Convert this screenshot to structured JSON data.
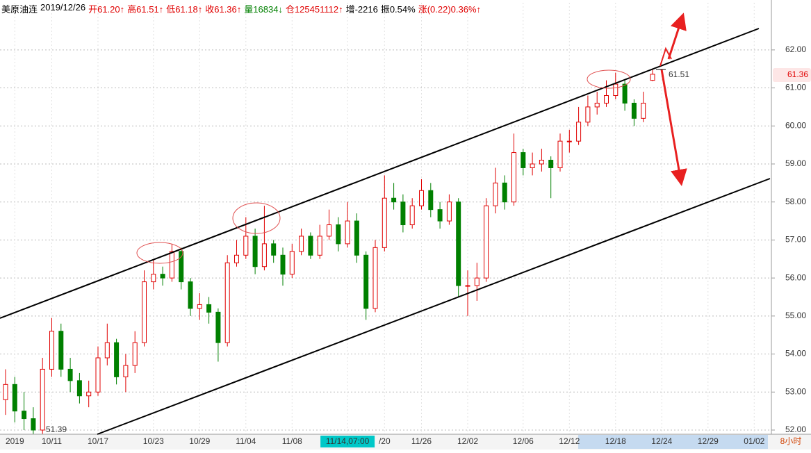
{
  "chart_data": {
    "type": "candlestick",
    "header": [
      {
        "text": "美原油连",
        "color": "#000000"
      },
      {
        "text": "2019/12/26",
        "color": "#000000"
      },
      {
        "text": "开61.20↑",
        "color": "#e00000"
      },
      {
        "text": "高61.51↑",
        "color": "#e00000"
      },
      {
        "text": "低61.18↑",
        "color": "#e00000"
      },
      {
        "text": "收61.36↑",
        "color": "#e00000"
      },
      {
        "text": "量16834↓",
        "color": "#008000"
      },
      {
        "text": "仓125451112↑",
        "color": "#e00000"
      },
      {
        "text": "增-2216",
        "color": "#000000"
      },
      {
        "text": "振0.54%",
        "color": "#000000"
      },
      {
        "text": "涨(0.22)0.36%↑",
        "color": "#e00000"
      }
    ],
    "period": "8小时",
    "categories": [
      null,
      "2019",
      null,
      null,
      null,
      "10/11",
      null,
      null,
      null,
      null,
      "10/17",
      null,
      null,
      null,
      null,
      null,
      "10/23",
      null,
      null,
      null,
      null,
      "10/29",
      null,
      null,
      null,
      null,
      "11/04",
      null,
      null,
      null,
      null,
      "11/08",
      null,
      null,
      null,
      null,
      null,
      "11/14,07:00",
      null,
      null,
      null,
      "/20",
      null,
      null,
      null,
      "11/26",
      null,
      null,
      null,
      null,
      "12/02",
      null,
      null,
      null,
      null,
      null,
      "12/06",
      null,
      null,
      null,
      null,
      "12/12",
      null,
      null,
      null,
      null,
      "12/18",
      null,
      null,
      null,
      null,
      "12/24",
      null,
      null,
      null,
      null,
      "12/29",
      null,
      null,
      null,
      null,
      "01/02",
      null
    ],
    "highlighted_category": "11/14,07:00",
    "ohlc": [
      [
        52.8,
        53.6,
        52.4,
        53.2
      ],
      [
        53.2,
        53.4,
        52.2,
        52.5
      ],
      [
        52.5,
        53.0,
        52.0,
        52.3
      ],
      [
        52.3,
        52.6,
        51.39,
        52.0
      ],
      [
        52.0,
        53.9,
        51.9,
        53.6
      ],
      [
        53.6,
        54.95,
        53.4,
        54.6
      ],
      [
        54.6,
        54.8,
        53.4,
        53.6
      ],
      [
        53.6,
        53.9,
        53.0,
        53.3
      ],
      [
        53.3,
        53.5,
        52.7,
        52.9
      ],
      [
        52.9,
        53.3,
        52.6,
        53.0
      ],
      [
        53.0,
        54.2,
        52.9,
        53.9
      ],
      [
        53.9,
        54.8,
        53.7,
        54.3
      ],
      [
        54.3,
        54.4,
        53.2,
        53.4
      ],
      [
        53.4,
        54.0,
        53.0,
        53.7
      ],
      [
        53.7,
        54.6,
        53.5,
        54.3
      ],
      [
        54.3,
        56.2,
        54.2,
        55.9
      ],
      [
        55.9,
        56.5,
        55.7,
        56.1
      ],
      [
        56.1,
        56.3,
        55.8,
        56.0
      ],
      [
        56.0,
        56.9,
        55.9,
        56.7
      ],
      [
        56.7,
        56.8,
        55.7,
        55.9
      ],
      [
        55.9,
        56.0,
        55.0,
        55.2
      ],
      [
        55.2,
        55.6,
        54.9,
        55.3
      ],
      [
        55.3,
        55.5,
        54.8,
        55.1
      ],
      [
        55.1,
        55.2,
        53.8,
        54.3
      ],
      [
        54.3,
        56.6,
        54.2,
        56.4
      ],
      [
        56.4,
        57.0,
        56.3,
        56.6
      ],
      [
        56.6,
        57.6,
        56.5,
        57.1
      ],
      [
        57.1,
        57.3,
        56.1,
        56.3
      ],
      [
        56.3,
        57.9,
        56.2,
        56.9
      ],
      [
        56.9,
        57.0,
        56.4,
        56.6
      ],
      [
        56.6,
        56.8,
        55.8,
        56.1
      ],
      [
        56.1,
        56.9,
        56.0,
        56.7
      ],
      [
        56.7,
        57.3,
        56.6,
        57.1
      ],
      [
        57.1,
        57.2,
        56.5,
        56.6
      ],
      [
        56.6,
        57.4,
        56.5,
        57.1
      ],
      [
        57.1,
        57.8,
        57.0,
        57.4
      ],
      [
        57.4,
        57.6,
        56.7,
        56.9
      ],
      [
        56.9,
        58.0,
        56.8,
        57.5
      ],
      [
        57.5,
        57.7,
        56.4,
        56.6
      ],
      [
        56.6,
        56.7,
        54.9,
        55.2
      ],
      [
        55.2,
        57.0,
        55.1,
        56.8
      ],
      [
        56.8,
        58.7,
        56.7,
        58.1
      ],
      [
        58.1,
        58.5,
        57.8,
        58.0
      ],
      [
        58.0,
        58.2,
        57.2,
        57.4
      ],
      [
        57.4,
        58.1,
        57.3,
        57.9
      ],
      [
        57.9,
        58.6,
        57.8,
        58.3
      ],
      [
        58.3,
        58.5,
        57.6,
        57.8
      ],
      [
        57.8,
        58.0,
        57.3,
        57.5
      ],
      [
        57.5,
        58.2,
        57.4,
        58.0
      ],
      [
        58.0,
        58.1,
        55.5,
        55.8
      ],
      [
        55.8,
        56.2,
        55.0,
        55.8
      ],
      [
        55.8,
        56.4,
        55.4,
        56.0
      ],
      [
        56.0,
        58.1,
        55.9,
        57.9
      ],
      [
        57.9,
        58.9,
        57.7,
        58.5
      ],
      [
        58.5,
        58.7,
        57.8,
        58.0
      ],
      [
        58.0,
        59.8,
        57.9,
        59.3
      ],
      [
        59.3,
        59.4,
        58.7,
        58.9
      ],
      [
        58.9,
        59.3,
        58.7,
        59.0
      ],
      [
        59.0,
        59.4,
        58.8,
        59.1
      ],
      [
        59.1,
        59.2,
        58.1,
        58.9
      ],
      [
        58.9,
        59.8,
        58.8,
        59.6
      ],
      [
        59.6,
        59.9,
        59.3,
        59.6
      ],
      [
        59.6,
        60.5,
        59.5,
        60.1
      ],
      [
        60.1,
        60.8,
        60.0,
        60.5
      ],
      [
        60.5,
        60.9,
        60.3,
        60.6
      ],
      [
        60.6,
        61.2,
        60.5,
        60.8
      ],
      [
        60.8,
        61.4,
        60.7,
        61.1
      ],
      [
        61.1,
        61.2,
        60.4,
        60.6
      ],
      [
        60.6,
        60.7,
        60.0,
        60.2
      ],
      [
        60.2,
        60.9,
        60.1,
        60.6
      ],
      [
        61.2,
        61.51,
        61.18,
        61.36
      ],
      null,
      null,
      null,
      null,
      null,
      null,
      null,
      null,
      null,
      null,
      null,
      null
    ],
    "up_color": "#e00000",
    "down_color": "#008000",
    "ylim": [
      51.89,
      63.24
    ],
    "yticks": [
      {
        "value": 52,
        "label": "52.00"
      },
      {
        "value": 53,
        "label": "53.00"
      },
      {
        "value": 54,
        "label": "54.00"
      },
      {
        "value": 55,
        "label": "55.00"
      },
      {
        "value": 56,
        "label": "56.00"
      },
      {
        "value": 57,
        "label": "57.00"
      },
      {
        "value": 58,
        "label": "58.00"
      },
      {
        "value": 59,
        "label": "59.00"
      },
      {
        "value": 60,
        "label": "60.00"
      },
      {
        "value": 61,
        "label": "61.00"
      },
      {
        "value": 62,
        "label": "62.00"
      }
    ],
    "grid": true
  }
}
